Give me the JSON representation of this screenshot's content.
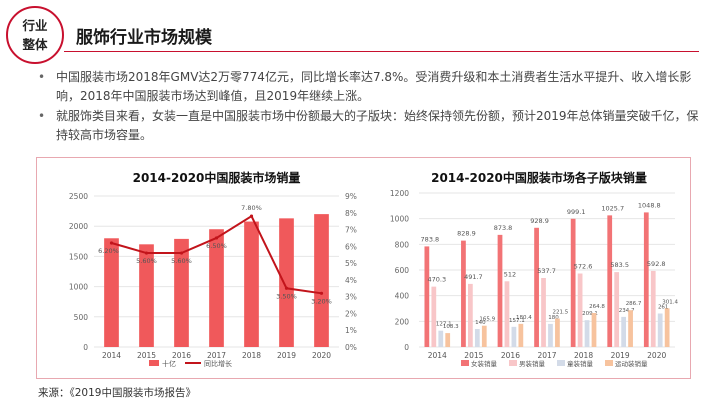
{
  "header": {
    "badge_line1": "行业",
    "badge_line2": "整体",
    "title": "服饰行业市场规模"
  },
  "bullets": [
    "中国服装市场2018年GMV达2万零774亿元，同比增长率达7.8%。受消费升级和本土消费者生活水平提升、收入增长影响，2018年中国服装市场达到峰值，且2019年继续上涨。",
    "就服饰类目来看，女装一直是中国服装市场中份额最大的子版块：始终保持领先份额，预计2019年总体销量突破千亿，保持较高市场容量。"
  ],
  "bullet_marker": "•",
  "source": "来源：《2019中国服装市场报告》",
  "colors": {
    "accent": "#c8102e",
    "bar_main": "#f0595b",
    "line_main": "#c2141b",
    "women": "#f27375",
    "men": "#f8c6c8",
    "sports": "#d3dbe8",
    "outdoor": "#f7c39e",
    "grid": "#e6e6e6",
    "panel_border": "#e8a8b0"
  },
  "chart_data": [
    {
      "type": "bar",
      "title": "2014-2020中国服装市场销量",
      "categories": [
        "2014",
        "2015",
        "2016",
        "2017",
        "2018",
        "2019",
        "2020"
      ],
      "series": [
        {
          "name": "十亿",
          "type": "bar",
          "axis": "left",
          "values": [
            1800,
            1700,
            1790,
            1950,
            2077,
            2130,
            2200
          ]
        },
        {
          "name": "同比增长",
          "type": "line",
          "axis": "right",
          "values": [
            6.2,
            5.6,
            5.6,
            6.5,
            7.8,
            3.5,
            3.2
          ],
          "labels": [
            "6.20%",
            "5.60%",
            "5.60%",
            "6.50%",
            "7.80%",
            "3.50%",
            "3.20%"
          ]
        }
      ],
      "y_left": {
        "min": 0,
        "max": 2500,
        "ticks": [
          "0",
          "500",
          "1000",
          "1500",
          "2000",
          "2500"
        ]
      },
      "y_right": {
        "min": 0,
        "max": 9,
        "ticks": [
          "0%",
          "1%",
          "2%",
          "3%",
          "4%",
          "5%",
          "6%",
          "7%",
          "8%",
          "9%"
        ]
      },
      "legend": [
        "十亿",
        "同比增长"
      ]
    },
    {
      "type": "bar",
      "title": "2014-2020中国服装市场各子版块销量",
      "categories": [
        "2014",
        "2015",
        "2016",
        "2017",
        "2018",
        "2019",
        "2020"
      ],
      "series": [
        {
          "name": "女装销量",
          "values": [
            783.8,
            828.9,
            873.8,
            928.9,
            999.1,
            1025.7,
            1048.8
          ],
          "labels": [
            "783.8",
            "828.9",
            "873.8",
            "928.9",
            "999.1",
            "1025.7",
            "1048.8"
          ]
        },
        {
          "name": "男装销量",
          "values": [
            470.3,
            491.7,
            512,
            537.7,
            572.6,
            583.5,
            592.8
          ],
          "labels": [
            "470.3",
            "491.7",
            "512",
            "537.7",
            "572.6",
            "583.5",
            "592.8"
          ]
        },
        {
          "name": "童装销量",
          "values": [
            127.1,
            140,
            157.1,
            180,
            209.1,
            234.7,
            261
          ],
          "labels": [
            "127.1",
            "140",
            "157.1",
            "180",
            "209.1",
            "234.7",
            "261"
          ]
        },
        {
          "name": "运动装销量",
          "values": [
            108.3,
            165.9,
            180.4,
            221.5,
            264.8,
            286.7,
            301.4
          ],
          "labels": [
            "108.3",
            "165.9",
            "180.4",
            "221.5",
            "264.8",
            "286.7",
            "301.4"
          ]
        }
      ],
      "y": {
        "min": 0,
        "max": 1200,
        "ticks": [
          "0",
          "200",
          "400",
          "600",
          "800",
          "1000",
          "1200"
        ]
      },
      "legend": [
        "女装销量",
        "男装销量",
        "童装销量",
        "运动装销量"
      ]
    }
  ]
}
